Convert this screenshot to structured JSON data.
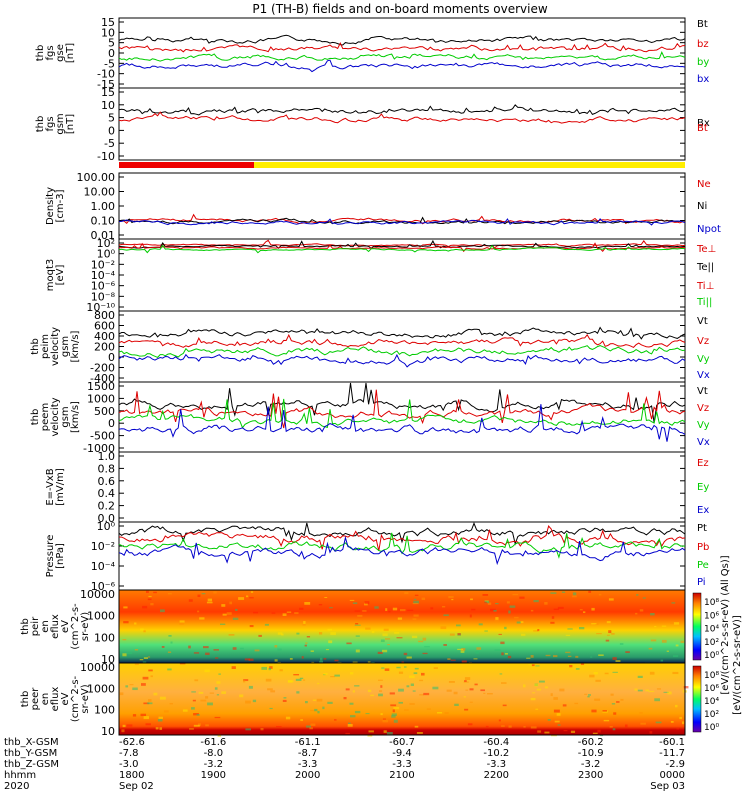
{
  "title": "P1 (TH-B) fields and on-board moments overview",
  "chart_data": [
    {
      "type": "line",
      "id": "fgs_gse",
      "ylabel": [
        "thb",
        "fgs",
        "gse",
        "[nT]"
      ],
      "yticks": [
        "15",
        "10",
        "5",
        "0",
        "-5",
        "-10",
        "-15"
      ],
      "ylim": [
        -15,
        15
      ],
      "series": [
        {
          "name": "Bt",
          "color": "#000000"
        },
        {
          "name": "bz",
          "color": "#dd0000"
        },
        {
          "name": "by",
          "color": "#00cc00"
        },
        {
          "name": "bx",
          "color": "#0000cc"
        }
      ]
    },
    {
      "type": "line",
      "id": "fgs_gsm",
      "ylabel": [
        "thb",
        "fgs",
        "gsm",
        "[nT]"
      ],
      "yticks": [
        "15",
        "10",
        "5",
        "0",
        "-5",
        "-10"
      ],
      "ylim": [
        -15,
        15
      ],
      "series": [
        {
          "name": "Bx",
          "color": "#000000"
        },
        {
          "name": "Bt",
          "color": "#dd0000"
        }
      ]
    },
    {
      "type": "line",
      "id": "density",
      "ylabel": [
        "Density",
        "[cm-3]"
      ],
      "yticks": [
        "100.00",
        "10.00",
        "1.00",
        "0.10",
        "0.01"
      ],
      "series": [
        {
          "name": "Ne",
          "color": "#dd0000"
        },
        {
          "name": "Ni",
          "color": "#000000"
        },
        {
          "name": "Npot",
          "color": "#0000cc"
        }
      ]
    },
    {
      "type": "line",
      "id": "temperature",
      "ylabel": [
        "moqt3",
        "[eV]"
      ],
      "yticks": [
        "10²",
        "10⁰",
        "10⁻²",
        "10⁻⁴",
        "10⁻⁶",
        "10⁻⁸",
        "10⁻¹⁰"
      ],
      "series": [
        {
          "name": "Te⊥",
          "color": "#dd0000"
        },
        {
          "name": "Te||",
          "color": "#000000"
        },
        {
          "name": "Ti⊥",
          "color": "#dd0000"
        },
        {
          "name": "Ti||",
          "color": "#00cc00"
        }
      ]
    },
    {
      "type": "line",
      "id": "peim_velocity",
      "ylabel": [
        "thb",
        "peim",
        "velocity",
        "gsm",
        "[km/s]"
      ],
      "yticks": [
        "800",
        "600",
        "400",
        "200",
        "0",
        "-200",
        "-400"
      ],
      "ylim": [
        -400,
        800
      ],
      "series": [
        {
          "name": "Vt",
          "color": "#000000"
        },
        {
          "name": "Vz",
          "color": "#dd0000"
        },
        {
          "name": "Vy",
          "color": "#00cc00"
        },
        {
          "name": "Vx",
          "color": "#0000cc"
        }
      ]
    },
    {
      "type": "line",
      "id": "peem_velocity",
      "ylabel": [
        "thb",
        "peem",
        "velocity",
        "gsm",
        "[km/s]"
      ],
      "yticks": [
        "1500",
        "1000",
        "500",
        "0",
        "-500",
        "-1000"
      ],
      "ylim": [
        -1000,
        1500
      ],
      "series": [
        {
          "name": "Vt",
          "color": "#000000"
        },
        {
          "name": "Vz",
          "color": "#dd0000"
        },
        {
          "name": "Vy",
          "color": "#00cc00"
        },
        {
          "name": "Vx",
          "color": "#0000cc"
        }
      ]
    },
    {
      "type": "line",
      "id": "efield",
      "ylabel": [
        "E=-VxB",
        "[mV/m]"
      ],
      "yticks": [
        "1.0",
        "0.8",
        "0.6",
        "0.4",
        "0.2",
        "0.0"
      ],
      "ylim": [
        0,
        1
      ],
      "series": [
        {
          "name": "Ez",
          "color": "#dd0000"
        },
        {
          "name": "Ey",
          "color": "#00cc00"
        },
        {
          "name": "Ex",
          "color": "#0000cc"
        }
      ]
    },
    {
      "type": "line",
      "id": "pressure",
      "ylabel": [
        "Pressure",
        "[nPa]"
      ],
      "yticks": [
        "10⁰",
        "10⁻²",
        "10⁻⁴",
        "10⁻⁶"
      ],
      "series": [
        {
          "name": "Pt",
          "color": "#000000"
        },
        {
          "name": "Pb",
          "color": "#dd0000"
        },
        {
          "name": "Pe",
          "color": "#00cc00"
        },
        {
          "name": "Pi",
          "color": "#0000cc"
        }
      ]
    },
    {
      "type": "heatmap",
      "id": "peir_en_eflux",
      "ylabel": [
        "thb",
        "peir",
        "en",
        "eflux",
        "eV",
        "(cm^2-s-",
        "sr-eV)"
      ],
      "yticks": [
        "10000",
        "1000",
        "100",
        "10"
      ],
      "cbar_ticks": [
        "10⁸",
        "10⁶",
        "10⁴",
        "10²",
        "10⁰"
      ]
    },
    {
      "type": "heatmap",
      "id": "peer_en_eflux",
      "ylabel": [
        "thb",
        "peer",
        "en",
        "eflux",
        "eV",
        "(cm^2-s-",
        "sr-eV)"
      ],
      "yticks": [
        "10000",
        "1000",
        "100",
        "10"
      ],
      "cbar_ticks": [
        "10⁸",
        "10⁶",
        "10⁴",
        "10²",
        "10⁰"
      ]
    }
  ],
  "colorbar_label": "[eV/(cm^2-s-sr-eV)]",
  "colorbar_label_overlap": "[eV/(cm^2-s-sr-eV) (All Qs)]",
  "xaxis": {
    "rows": [
      {
        "label": "thb_X-GSM",
        "values": [
          "-62.6",
          "-61.6",
          "-61.1",
          "-60.7",
          "-60.4",
          "-60.2",
          "-60.1"
        ]
      },
      {
        "label": "thb_Y-GSM",
        "values": [
          "-7.8",
          "-8.0",
          "-8.7",
          "-9.4",
          "-10.2",
          "-10.9",
          "-11.7"
        ]
      },
      {
        "label": "thb_Z-GSM",
        "values": [
          "-3.0",
          "-3.2",
          "-3.3",
          "-3.3",
          "-3.3",
          "-3.2",
          "-2.9"
        ]
      },
      {
        "label": "hhmm",
        "values": [
          "1800",
          "1900",
          "2000",
          "2100",
          "2200",
          "2300",
          "0000"
        ]
      }
    ],
    "year": "2020",
    "date_start": "Sep 02",
    "date_end": "Sep 03"
  }
}
